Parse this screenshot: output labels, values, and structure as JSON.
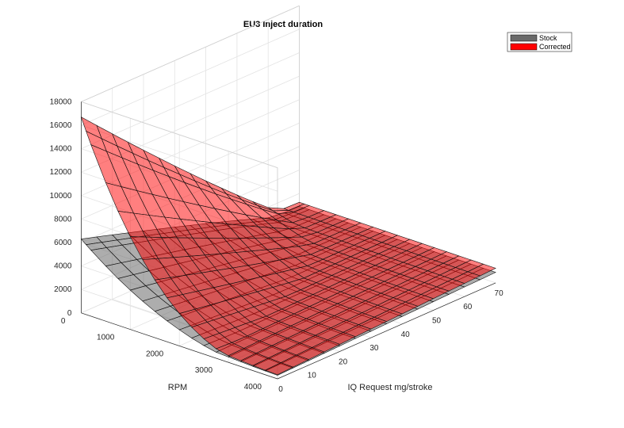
{
  "chart_data": {
    "type": "surface",
    "title": "EU3 Inject duration",
    "xlabel": "IQ Request mg/stroke",
    "ylabel": "RPM",
    "zlabel": "",
    "x_ticks": [
      0,
      10,
      20,
      30,
      40,
      50,
      60,
      70
    ],
    "y_ticks": [
      0,
      1000,
      2000,
      3000,
      4000
    ],
    "y_tick_labels": [
      "0",
      "1000",
      "2000",
      "3000",
      "4000"
    ],
    "z_ticks": [
      0,
      2000,
      4000,
      6000,
      8000,
      10000,
      12000,
      14000,
      16000,
      18000
    ],
    "xlim": [
      0,
      70
    ],
    "ylim": [
      0,
      4000
    ],
    "zlim": [
      0,
      18000
    ],
    "grid": true,
    "legend_position": "top-right",
    "series": [
      {
        "name": "Stock",
        "color": "#696969"
      },
      {
        "name": "Corrected",
        "color": "#ff0000"
      }
    ],
    "iq_grid": [
      0,
      5,
      10,
      15,
      20,
      25,
      30,
      35,
      40,
      45,
      50,
      55,
      60,
      65,
      70
    ],
    "rpm_grid": [
      0,
      100,
      200,
      500,
      750,
      1000,
      1250,
      1500,
      1750,
      2000,
      2250,
      2500,
      2750,
      3000,
      3250,
      3500,
      3750,
      4000
    ],
    "stock_surface_peak": 6300,
    "corrected_surface_peak": 16700
  }
}
